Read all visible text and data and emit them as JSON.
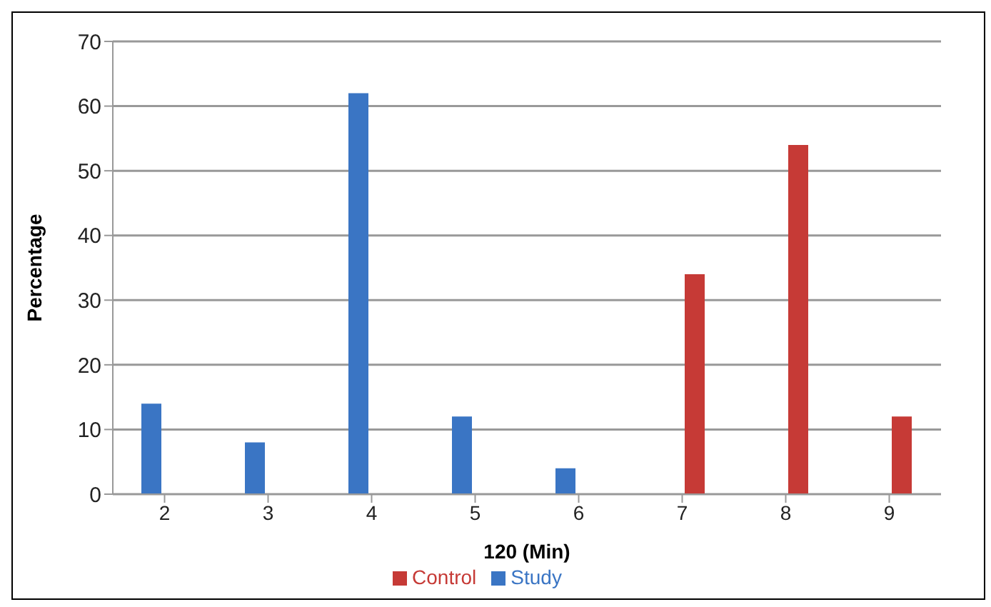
{
  "chart_data": {
    "type": "bar",
    "xlabel": "120 (Min)",
    "ylabel": "Percentage",
    "categories": [
      "2",
      "3",
      "4",
      "5",
      "6",
      "7",
      "8",
      "9"
    ],
    "series": [
      {
        "name": "Study",
        "color": "#3a75c4",
        "values": [
          14,
          8,
          62,
          12,
          4,
          0,
          0,
          0
        ]
      },
      {
        "name": "Control",
        "color": "#c63a36",
        "values": [
          0,
          0,
          0,
          0,
          0,
          34,
          54,
          12
        ]
      }
    ],
    "ylim": [
      0,
      70
    ],
    "yticks": [
      0,
      10,
      20,
      30,
      40,
      50,
      60,
      70
    ],
    "grid": "y",
    "legend": "bottom"
  }
}
